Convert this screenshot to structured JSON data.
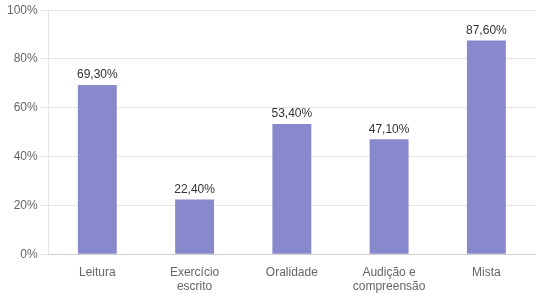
{
  "chart_data": {
    "type": "bar",
    "categories": [
      "Leitura",
      "Exercício\nescrito",
      "Oralidade",
      "Audição e\ncompreensão",
      "Mista"
    ],
    "values": [
      69.3,
      22.4,
      53.4,
      47.1,
      87.6
    ],
    "value_labels": [
      "69,30%",
      "22,40%",
      "53,40%",
      "47,10%",
      "87,60%"
    ],
    "data_labels": true,
    "color": "#8888cc",
    "ylim": [
      0,
      100
    ],
    "yticks": [
      {
        "value": 0,
        "label": "0%"
      },
      {
        "value": 20,
        "label": "20%"
      },
      {
        "value": 40,
        "label": "40%"
      },
      {
        "value": 60,
        "label": "60%"
      },
      {
        "value": 80,
        "label": "80%"
      },
      {
        "value": 100,
        "label": "100%"
      }
    ],
    "grid": true
  }
}
